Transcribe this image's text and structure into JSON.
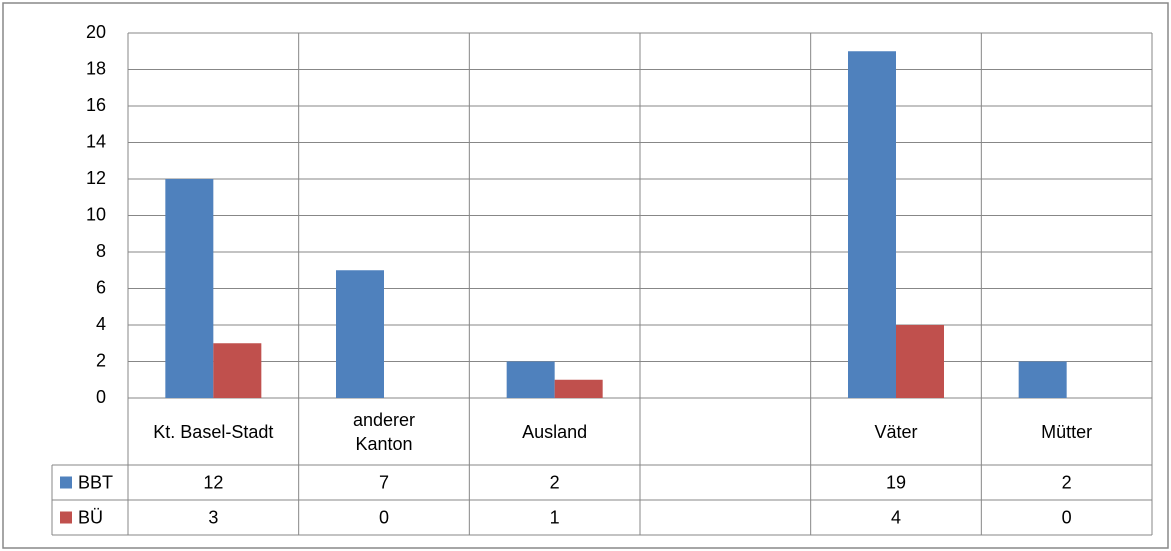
{
  "chart_data": {
    "type": "bar",
    "categories": [
      "Kt. Basel-Stadt",
      "anderer\nKanton",
      "Ausland",
      null,
      "Väter",
      "Mütter"
    ],
    "series": [
      {
        "name": "BBT",
        "color": "#4f81bd",
        "values": [
          12,
          7,
          2,
          null,
          19,
          2
        ]
      },
      {
        "name": "BÜ",
        "color": "#c0504d",
        "values": [
          3,
          0,
          1,
          null,
          4,
          0
        ]
      }
    ],
    "ylim": [
      0,
      20
    ],
    "yticks": [
      0,
      2,
      4,
      6,
      8,
      10,
      12,
      14,
      16,
      18,
      20
    ],
    "grid": true
  }
}
